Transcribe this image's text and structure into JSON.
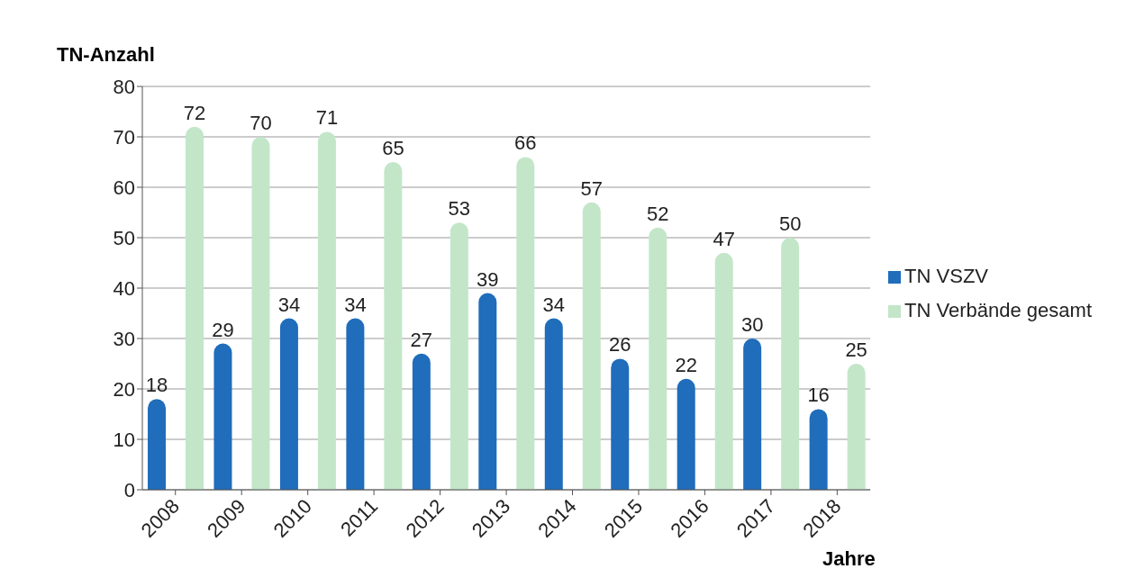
{
  "chart_data": {
    "type": "bar",
    "ylabel": "TN-Anzahl",
    "xlabel": "Jahre",
    "categories": [
      "2008",
      "2009",
      "2010",
      "2011",
      "2012",
      "2013",
      "2014",
      "2015",
      "2016",
      "2017",
      "2018"
    ],
    "series": [
      {
        "name": "TN VSZV",
        "color": "#1f6dbb",
        "values": [
          18,
          29,
          34,
          34,
          27,
          39,
          34,
          26,
          22,
          30,
          16
        ]
      },
      {
        "name": "TN Verbände gesamt",
        "color": "#c3e6c9",
        "values": [
          72,
          70,
          71,
          65,
          53,
          66,
          57,
          52,
          47,
          50,
          25
        ]
      }
    ],
    "ylim": [
      0,
      80
    ],
    "yticks": [
      0,
      10,
      20,
      30,
      40,
      50,
      60,
      70,
      80
    ],
    "grid": "y",
    "legend": "right",
    "data_labels": true
  }
}
